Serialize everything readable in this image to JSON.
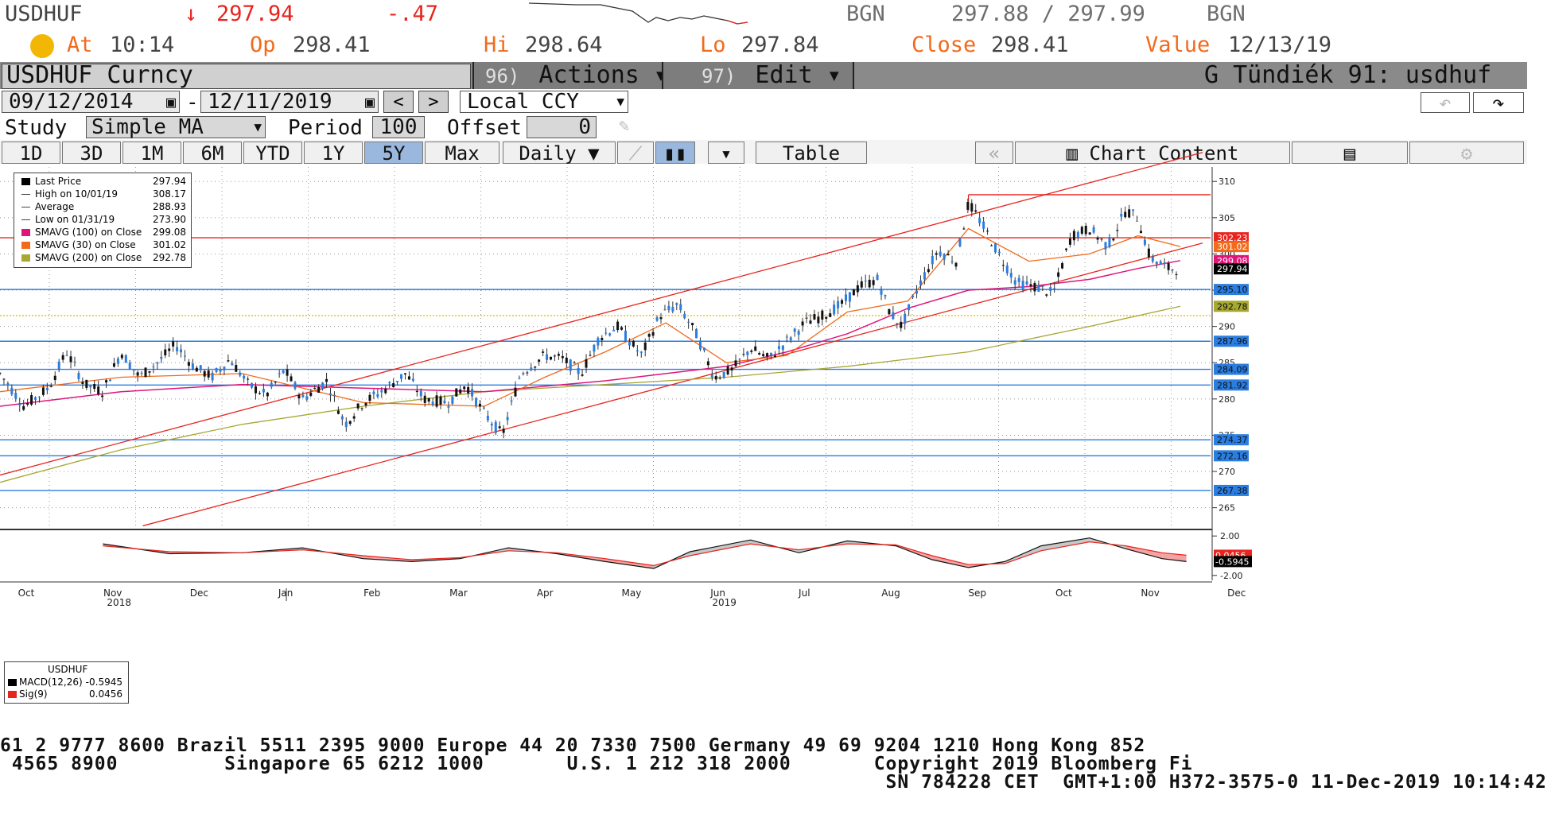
{
  "quote": {
    "ticker": "USDHUF",
    "arrow": "↓",
    "last": "297.94",
    "change": "-.47",
    "bid_src": "BGN",
    "bid_ask": "297.88 / 297.99",
    "ask_src": "BGN",
    "at_label": "At",
    "at_value": "10:14",
    "op_label": "Op",
    "op_value": "298.41",
    "hi_label": "Hi",
    "hi_value": "298.64",
    "lo_label": "Lo",
    "lo_value": "297.84",
    "close_label": "Close",
    "close_value": "298.41",
    "value_label": "Value",
    "value_date": "12/13/19"
  },
  "titlebar": {
    "security": "USDHUF Curncy",
    "actions_num": "96)",
    "actions": "Actions ▾",
    "edit_num": "97)",
    "edit": "Edit ▾",
    "user": "G Tündiék 91: usdhuf"
  },
  "range": {
    "start": "09/12/2014",
    "sep": "-",
    "end": "12/11/2019",
    "prev": "<",
    "next": ">",
    "currency": "Local CCY"
  },
  "study": {
    "label": "Study",
    "type": "Simple MA",
    "period_label": "Period",
    "period": "100",
    "offset_label": "Offset",
    "offset": "0"
  },
  "tabs": [
    "1D",
    "3D",
    "1M",
    "6M",
    "YTD",
    "1Y",
    "5Y",
    "Max"
  ],
  "active_tab": "5Y",
  "toolbar": {
    "frequency": "Daily ▼",
    "table": "Table",
    "back": "«",
    "chart_content": "Chart Content"
  },
  "legend": [
    {
      "name": "Last Price",
      "value": "297.94",
      "color": "#000000"
    },
    {
      "name": "High on 10/01/19",
      "value": "308.17",
      "color": "#444444"
    },
    {
      "name": "Average",
      "value": "288.93",
      "color": "#444444"
    },
    {
      "name": "Low on 01/31/19",
      "value": "273.90",
      "color": "#444444"
    },
    {
      "name": "SMAVG (100)  on Close",
      "value": "299.08",
      "color": "#e0157a"
    },
    {
      "name": "SMAVG (30)  on Close",
      "value": "301.02",
      "color": "#f26a1b"
    },
    {
      "name": "SMAVG (200)  on Close",
      "value": "292.78",
      "color": "#a7a732"
    }
  ],
  "macd_legend": {
    "title": "USDHUF",
    "items": [
      {
        "name": "MACD(12,26)",
        "value": "-0.5945",
        "color": "#000000"
      },
      {
        "name": "Sig(9)",
        "value": "0.0456",
        "color": "#e8241d"
      }
    ]
  },
  "chart_data": {
    "type": "candlestick",
    "y_ticks": [
      265,
      270,
      275,
      280,
      285,
      290,
      295,
      300,
      305,
      310
    ],
    "ylim": [
      262,
      312
    ],
    "x_labels": [
      {
        "label": "Oct",
        "year": ""
      },
      {
        "label": "Nov",
        "year": "2018"
      },
      {
        "label": "Dec",
        "year": ""
      },
      {
        "label": "Jan",
        "year": ""
      },
      {
        "label": "Feb",
        "year": ""
      },
      {
        "label": "Mar",
        "year": ""
      },
      {
        "label": "Apr",
        "year": ""
      },
      {
        "label": "May",
        "year": ""
      },
      {
        "label": "Jun",
        "year": "2019"
      },
      {
        "label": "Jul",
        "year": ""
      },
      {
        "label": "Aug",
        "year": ""
      },
      {
        "label": "Sep",
        "year": ""
      },
      {
        "label": "Oct",
        "year": ""
      },
      {
        "label": "Nov",
        "year": ""
      },
      {
        "label": "Dec",
        "year": ""
      }
    ],
    "price_markers": [
      {
        "value": 302.23,
        "color": "#e8241d",
        "label": "302.23"
      },
      {
        "value": 301.02,
        "color": "#f26a1b",
        "label": "301.02"
      },
      {
        "value": 299.08,
        "color": "#e0157a",
        "label": "299.08"
      },
      {
        "value": 297.94,
        "color": "#000000",
        "label": "297.94"
      },
      {
        "value": 295.1,
        "color": "#2a7de1",
        "label": "295.10"
      },
      {
        "value": 292.78,
        "color": "#a7a732",
        "label": "292.78"
      },
      {
        "value": 287.96,
        "color": "#2a7de1",
        "label": "287.96"
      },
      {
        "value": 284.09,
        "color": "#2a7de1",
        "label": "284.09"
      },
      {
        "value": 281.92,
        "color": "#2a7de1",
        "label": "281.92"
      },
      {
        "value": 274.37,
        "color": "#2a7de1",
        "label": "274.37"
      },
      {
        "value": 272.16,
        "color": "#2a7de1",
        "label": "272.16"
      },
      {
        "value": 267.38,
        "color": "#2a7de1",
        "label": "267.38"
      }
    ],
    "horizontal_lines": [
      {
        "value": 302.23,
        "color": "#e8241d"
      },
      {
        "value": 295.1,
        "color": "#2a7de1"
      },
      {
        "value": 287.96,
        "color": "#2a7de1"
      },
      {
        "value": 284.09,
        "color": "#2a7de1"
      },
      {
        "value": 281.92,
        "color": "#2a7de1"
      },
      {
        "value": 274.37,
        "color": "#2a7de1"
      },
      {
        "value": 272.16,
        "color": "#2a7de1"
      },
      {
        "value": 267.38,
        "color": "#2a7de1"
      },
      {
        "value": 291.5,
        "color": "#f2b705",
        "dotted": true
      },
      {
        "value": 308.17,
        "color": "#e8241d",
        "from": 0.8
      }
    ],
    "channel_lines": [
      {
        "from": [
          0,
          269.5
        ],
        "to": [
          1,
          314.0
        ],
        "color": "#e8241d"
      },
      {
        "from": [
          0.118,
          262.5
        ],
        "to": [
          1,
          301.5
        ],
        "color": "#e8241d"
      }
    ],
    "price_path": [
      [
        0,
        283.5
      ],
      [
        0.02,
        279.0
      ],
      [
        0.04,
        281.5
      ],
      [
        0.055,
        286.5
      ],
      [
        0.07,
        282.0
      ],
      [
        0.085,
        281.0
      ],
      [
        0.1,
        286.5
      ],
      [
        0.115,
        283.0
      ],
      [
        0.13,
        285.0
      ],
      [
        0.145,
        287.5
      ],
      [
        0.16,
        284.5
      ],
      [
        0.175,
        283.0
      ],
      [
        0.19,
        285.5
      ],
      [
        0.205,
        282.0
      ],
      [
        0.22,
        280.5
      ],
      [
        0.235,
        284.0
      ],
      [
        0.25,
        280.0
      ],
      [
        0.27,
        282.5
      ],
      [
        0.285,
        276.5
      ],
      [
        0.3,
        279.5
      ],
      [
        0.315,
        281.0
      ],
      [
        0.335,
        283.5
      ],
      [
        0.35,
        280.0
      ],
      [
        0.37,
        279.5
      ],
      [
        0.385,
        282.0
      ],
      [
        0.4,
        278.0
      ],
      [
        0.415,
        275.0
      ],
      [
        0.43,
        283.5
      ],
      [
        0.45,
        286.0
      ],
      [
        0.465,
        285.5
      ],
      [
        0.48,
        283.5
      ],
      [
        0.495,
        288.5
      ],
      [
        0.51,
        290.0
      ],
      [
        0.53,
        286.0
      ],
      [
        0.545,
        291.5
      ],
      [
        0.56,
        293.0
      ],
      [
        0.575,
        289.0
      ],
      [
        0.59,
        283.0
      ],
      [
        0.605,
        284.0
      ],
      [
        0.62,
        287.0
      ],
      [
        0.635,
        285.5
      ],
      [
        0.65,
        288.0
      ],
      [
        0.665,
        290.5
      ],
      [
        0.68,
        291.5
      ],
      [
        0.695,
        293.0
      ],
      [
        0.71,
        295.5
      ],
      [
        0.725,
        296.5
      ],
      [
        0.735,
        292.0
      ],
      [
        0.745,
        290.0
      ],
      [
        0.76,
        296.0
      ],
      [
        0.775,
        300.5
      ],
      [
        0.79,
        299.0
      ],
      [
        0.8,
        307.0
      ],
      [
        0.81,
        304.5
      ],
      [
        0.825,
        300.0
      ],
      [
        0.84,
        296.0
      ],
      [
        0.855,
        295.5
      ],
      [
        0.87,
        294.5
      ],
      [
        0.885,
        302.5
      ],
      [
        0.9,
        303.5
      ],
      [
        0.915,
        301.0
      ],
      [
        0.93,
        306.0
      ],
      [
        0.94,
        305.0
      ],
      [
        0.95,
        299.5
      ],
      [
        0.965,
        298.0
      ],
      [
        0.975,
        297.94
      ]
    ],
    "ma30_path": [
      [
        0,
        281.0
      ],
      [
        0.1,
        283.0
      ],
      [
        0.2,
        283.5
      ],
      [
        0.3,
        279.5
      ],
      [
        0.4,
        279.0
      ],
      [
        0.45,
        283.0
      ],
      [
        0.5,
        286.5
      ],
      [
        0.55,
        290.5
      ],
      [
        0.6,
        285.0
      ],
      [
        0.65,
        286.0
      ],
      [
        0.7,
        292.0
      ],
      [
        0.75,
        293.5
      ],
      [
        0.8,
        303.5
      ],
      [
        0.85,
        299.0
      ],
      [
        0.9,
        300.0
      ],
      [
        0.94,
        302.5
      ],
      [
        0.975,
        301.02
      ]
    ],
    "ma100_path": [
      [
        0,
        279.0
      ],
      [
        0.1,
        281.0
      ],
      [
        0.2,
        282.0
      ],
      [
        0.3,
        281.5
      ],
      [
        0.4,
        281.0
      ],
      [
        0.5,
        282.5
      ],
      [
        0.55,
        283.5
      ],
      [
        0.6,
        284.5
      ],
      [
        0.65,
        286.5
      ],
      [
        0.7,
        289.0
      ],
      [
        0.75,
        292.5
      ],
      [
        0.8,
        295.0
      ],
      [
        0.85,
        295.5
      ],
      [
        0.9,
        296.5
      ],
      [
        0.94,
        298.0
      ],
      [
        0.975,
        299.08
      ]
    ],
    "ma200_path": [
      [
        0,
        268.5
      ],
      [
        0.1,
        273.0
      ],
      [
        0.2,
        276.5
      ],
      [
        0.3,
        279.0
      ],
      [
        0.4,
        281.0
      ],
      [
        0.5,
        282.0
      ],
      [
        0.6,
        283.0
      ],
      [
        0.7,
        284.5
      ],
      [
        0.8,
        286.5
      ],
      [
        0.9,
        290.0
      ],
      [
        0.975,
        292.78
      ]
    ],
    "macd": {
      "y_ticks": [
        "2.00",
        "-2.00"
      ],
      "ylim": [
        -2.5,
        2.5
      ],
      "markers": [
        {
          "value": 0.0456,
          "label": "0.0456",
          "color": "#e8241d"
        },
        {
          "value": -0.5945,
          "label": "-0.5945",
          "color": "#000000"
        }
      ],
      "macd_path": [
        [
          0.085,
          1.2
        ],
        [
          0.14,
          0.2
        ],
        [
          0.2,
          0.3
        ],
        [
          0.25,
          0.8
        ],
        [
          0.3,
          -0.3
        ],
        [
          0.34,
          -0.6
        ],
        [
          0.38,
          -0.3
        ],
        [
          0.42,
          0.8
        ],
        [
          0.46,
          0.2
        ],
        [
          0.5,
          -0.6
        ],
        [
          0.54,
          -1.3
        ],
        [
          0.57,
          0.4
        ],
        [
          0.62,
          1.6
        ],
        [
          0.66,
          0.3
        ],
        [
          0.7,
          1.5
        ],
        [
          0.74,
          1.0
        ],
        [
          0.77,
          -0.4
        ],
        [
          0.8,
          -1.2
        ],
        [
          0.83,
          -0.6
        ],
        [
          0.86,
          1.0
        ],
        [
          0.9,
          1.8
        ],
        [
          0.93,
          0.7
        ],
        [
          0.96,
          -0.3
        ],
        [
          0.98,
          -0.6
        ]
      ],
      "signal_path": [
        [
          0.085,
          1.0
        ],
        [
          0.14,
          0.4
        ],
        [
          0.2,
          0.3
        ],
        [
          0.25,
          0.6
        ],
        [
          0.3,
          0.0
        ],
        [
          0.34,
          -0.4
        ],
        [
          0.38,
          -0.2
        ],
        [
          0.42,
          0.5
        ],
        [
          0.46,
          0.3
        ],
        [
          0.5,
          -0.3
        ],
        [
          0.54,
          -1.0
        ],
        [
          0.57,
          0.0
        ],
        [
          0.62,
          1.2
        ],
        [
          0.66,
          0.6
        ],
        [
          0.7,
          1.2
        ],
        [
          0.74,
          1.1
        ],
        [
          0.77,
          0.0
        ],
        [
          0.8,
          -0.9
        ],
        [
          0.83,
          -0.8
        ],
        [
          0.86,
          0.5
        ],
        [
          0.9,
          1.4
        ],
        [
          0.93,
          1.0
        ],
        [
          0.96,
          0.3
        ],
        [
          0.98,
          0.05
        ]
      ]
    }
  },
  "footer": {
    "line1": "61 2 9777 8600 Brazil 5511 2395 9000 Europe 44 20 7330 7500 Germany 49 69 9204 1210 Hong Kong 852",
    "line2": " 4565 8900         Singapore 65 6212 1000       U.S. 1 212 318 2000       Copyright 2019 Bloomberg Fi",
    "line3": "                                                                           SN 784228 CET  GMT+1:00 H372-3575-0 11-Dec-2019 10:14:42"
  }
}
